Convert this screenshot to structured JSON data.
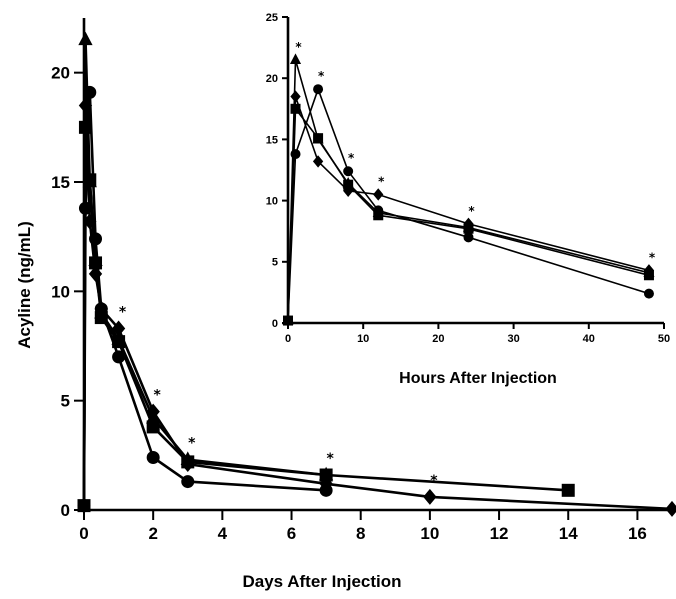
{
  "chart_data": [
    {
      "type": "line",
      "title": "",
      "xlabel": "Days After Injection",
      "ylabel": "Acyline (ng/mL)",
      "xlim": [
        0,
        17
      ],
      "ylim": [
        0,
        22.5
      ],
      "xticks": [
        0,
        2,
        4,
        6,
        8,
        10,
        12,
        14,
        16
      ],
      "yticks": [
        0,
        5,
        10,
        15,
        20
      ],
      "tick_labels_x": [
        "0",
        "2",
        "4",
        "6",
        "8",
        "10",
        "12",
        "14",
        "16"
      ],
      "tick_labels_y": [
        "0",
        "5",
        "10",
        "15",
        "20"
      ],
      "series": [
        {
          "marker": "triangle",
          "x": [
            0,
            0.042,
            0.167,
            0.333,
            0.5,
            1,
            2,
            3,
            7
          ],
          "y": [
            0.2,
            21.5,
            15.0,
            11.4,
            9.0,
            7.8,
            4.2,
            2.3,
            1.6
          ]
        },
        {
          "marker": "square",
          "x": [
            0,
            0.042,
            0.167,
            0.333,
            0.5,
            1,
            2,
            3,
            7,
            14
          ],
          "y": [
            0.2,
            17.5,
            15.1,
            11.3,
            8.8,
            7.7,
            3.8,
            2.2,
            1.6,
            0.9
          ]
        },
        {
          "marker": "diamond",
          "x": [
            0,
            0.042,
            0.167,
            0.333,
            0.5,
            1,
            2,
            3,
            7,
            10,
            17
          ],
          "y": [
            0.2,
            18.5,
            13.2,
            10.8,
            9.2,
            8.3,
            4.5,
            2.1,
            1.2,
            0.6,
            0.05
          ]
        },
        {
          "marker": "circle",
          "x": [
            0,
            0.042,
            0.167,
            0.333,
            0.5,
            1,
            2,
            3,
            7
          ],
          "y": [
            0.2,
            13.8,
            19.1,
            12.4,
            9.2,
            7.0,
            2.4,
            1.3,
            0.9
          ]
        }
      ],
      "significance_markers": [
        {
          "x": 1,
          "y": 8.3,
          "label": "*"
        },
        {
          "x": 2,
          "y": 4.5,
          "label": "*"
        },
        {
          "x": 3,
          "y": 2.3,
          "label": "*"
        },
        {
          "x": 7,
          "y": 1.6,
          "label": "*"
        },
        {
          "x": 10,
          "y": 0.6,
          "label": "*"
        }
      ]
    },
    {
      "type": "line",
      "title": "",
      "xlabel": "Hours After Injection",
      "ylabel": "",
      "xlim": [
        0,
        50
      ],
      "ylim": [
        0,
        25
      ],
      "xticks": [
        0,
        10,
        20,
        30,
        40,
        50
      ],
      "yticks": [
        0,
        5,
        10,
        15,
        20,
        25
      ],
      "tick_labels_x": [
        "0",
        "10",
        "20",
        "30",
        "40",
        "50"
      ],
      "tick_labels_y": [
        "0",
        "5",
        "10",
        "15",
        "20",
        "25"
      ],
      "series": [
        {
          "marker": "triangle",
          "x": [
            0,
            1,
            4,
            8,
            12,
            24,
            48
          ],
          "y": [
            0.2,
            21.5,
            15.0,
            11.4,
            9.0,
            7.8,
            4.1
          ]
        },
        {
          "marker": "square",
          "x": [
            0,
            1,
            4,
            8,
            12,
            24,
            48
          ],
          "y": [
            0.2,
            17.5,
            15.1,
            11.3,
            8.8,
            7.7,
            3.9
          ]
        },
        {
          "marker": "diamond",
          "x": [
            0,
            1,
            4,
            8,
            12,
            24,
            48
          ],
          "y": [
            0.2,
            18.5,
            13.2,
            10.8,
            10.5,
            8.1,
            4.3
          ]
        },
        {
          "marker": "circle",
          "x": [
            0,
            1,
            4,
            8,
            12,
            24,
            48
          ],
          "y": [
            0.2,
            13.8,
            19.1,
            12.4,
            9.2,
            7.0,
            2.4
          ]
        }
      ],
      "significance_markers": [
        {
          "x": 1,
          "y": 21.5,
          "label": "*"
        },
        {
          "x": 4,
          "y": 19.1,
          "label": "*"
        },
        {
          "x": 8,
          "y": 12.4,
          "label": "*"
        },
        {
          "x": 12,
          "y": 10.5,
          "label": "*"
        },
        {
          "x": 24,
          "y": 8.1,
          "label": "*"
        },
        {
          "x": 48,
          "y": 4.3,
          "label": "*"
        }
      ]
    }
  ]
}
